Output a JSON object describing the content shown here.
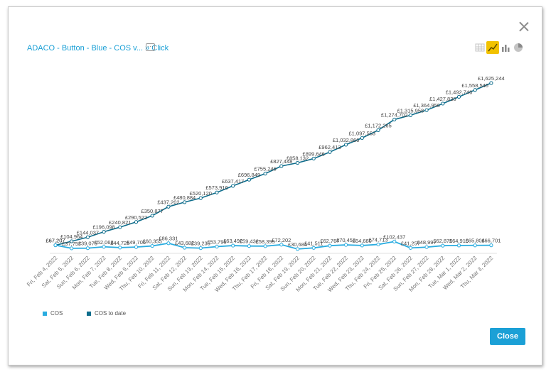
{
  "breadcrumb": {
    "item": "ADACO - Button - Blue - COS v...",
    "separator": "»",
    "current": "Click",
    "more": "···"
  },
  "toolbar": {
    "active_view": "line",
    "icons": [
      "table-view-icon",
      "line-chart-icon",
      "bar-chart-icon",
      "pie-chart-icon"
    ]
  },
  "legend": [
    {
      "label": "COS",
      "color": "#29ace0"
    },
    {
      "label": "COS to date",
      "color": "#0e6d8c"
    }
  ],
  "close_label": "Close",
  "chart_data": {
    "type": "line",
    "categories": [
      "Fri, Feb 4, 2022",
      "Sat, Feb 5, 2022",
      "Sun, Feb 6, 2022",
      "Mon, Feb 7, 2022",
      "Tue, Feb 8, 2022",
      "Wed, Feb 9, 2022",
      "Thu, Feb 10, 2022",
      "Fri, Feb 11, 2022",
      "Sat, Feb 12, 2022",
      "Sun, Feb 13, 2022",
      "Mon, Feb 14, 2022",
      "Tue, Feb 15, 2022",
      "Wed, Feb 16, 2022",
      "Thu, Feb 17, 2022",
      "Fri, Feb 18, 2022",
      "Sat, Feb 19, 2022",
      "Sun, Feb 20, 2022",
      "Mon, Feb 21, 2022",
      "Tue, Feb 22, 2022",
      "Wed, Feb 23, 2022",
      "Thu, Feb 24, 2022",
      "Fri, Feb 25, 2022",
      "Sat, Feb 26, 2022",
      "Sun, Feb 27, 2022",
      "Mon, Feb 28, 2022",
      "Tue, Mar 1, 2022",
      "Wed, Mar 2, 2022",
      "Thu, Mar 3, 2022"
    ],
    "series": [
      {
        "name": "COS",
        "color": "#29ace0",
        "values": [
          67207,
          37757,
          39075,
          52063,
          44725,
          49706,
          60355,
          86331,
          43682,
          39236,
          53796,
          63492,
          59432,
          58395,
          72202,
          30684,
          41511,
          62767,
          70452,
          64680,
          74713,
          102437,
          41257,
          48997,
          62875,
          64916,
          65804,
          66701
        ],
        "labels": [
          "£67,207",
          "£37,757",
          "£39,075",
          "£52,063",
          "£44,725",
          "£49,706",
          "£60,355",
          "£86,331",
          "£43,682",
          "£39,236",
          "£53,796",
          "£63,492",
          "£59,432",
          "£58,395",
          "£72,202",
          "£30,684",
          "£41,511",
          "£62,767",
          "£70,452",
          "£64,680",
          "£74,713",
          "£102,437",
          "£41,257",
          "£48,997",
          "£62,875",
          "£64,916",
          "£65,804",
          "£66,701"
        ]
      },
      {
        "name": "COS to date",
        "color": "#0e6d8c",
        "values": [
          67207,
          104964,
          144037,
          196098,
          240821,
          290522,
          350877,
          437202,
          480884,
          520120,
          573916,
          637417,
          696849,
          755246,
          827448,
          858132,
          899646,
          962413,
          1032866,
          1097553,
          1172265,
          1274702,
          1315958,
          1364956,
          1427830,
          1492746,
          1558546,
          1625244
        ],
        "labels": [
          "£67,207",
          "£104,964",
          "£144,037",
          "£196,098",
          "£240,821",
          "£290,522",
          "£350,877",
          "£437,202",
          "£480,884",
          "£520,120",
          "£573,916",
          "£637,417",
          "£696,849",
          "£755,246",
          "£827,448",
          "£858,132",
          "£899,646",
          "£962,413",
          "£1,032,866",
          "£1,097,553",
          "£1,172,265",
          "£1,274,702",
          "£1,315,958",
          "£1,364,956",
          "£1,427,830",
          "£1,492,746",
          "£1,558,546",
          "£1,625,244"
        ]
      }
    ],
    "grid": false,
    "legend_position": "bottom-left"
  }
}
